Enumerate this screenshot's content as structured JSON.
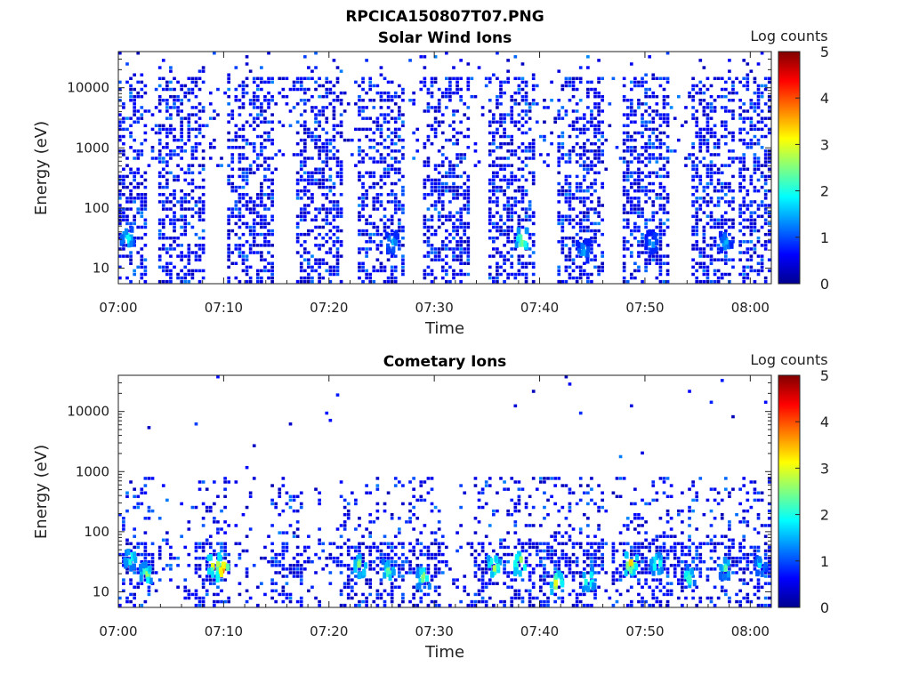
{
  "figure": {
    "title": "RPCICA150807T07.PNG"
  },
  "colorbar": {
    "label": "Log counts",
    "range": [
      0,
      5
    ],
    "ticks": [
      "0",
      "1",
      "2",
      "3",
      "4",
      "5"
    ]
  },
  "chart_data": [
    {
      "type": "heatmap",
      "id": "solar",
      "title": "Solar Wind Ions",
      "xlabel": "Time",
      "ylabel": "Energy (eV)",
      "x_ticks": [
        "07:00",
        "07:10",
        "07:20",
        "07:30",
        "07:40",
        "07:50",
        "08:00"
      ],
      "x_range_minutes": [
        0,
        62
      ],
      "y_scale": "log",
      "y_ticks": [
        "10",
        "100",
        "1000",
        "10000"
      ],
      "y_range": [
        5.5,
        40000
      ],
      "z_label": "Log counts",
      "z_range": [
        0,
        5
      ],
      "bursts_minutes": [
        0.7,
        6.0,
        12.5,
        19.0,
        25.0,
        31.2,
        37.5,
        44.0,
        50.0,
        56.5,
        61.0
      ],
      "hotspots": [
        {
          "t_min": 0.7,
          "energy_eV": 35,
          "log_counts": 2.2
        },
        {
          "t_min": 25.8,
          "energy_eV": 30,
          "log_counts": 1.8
        },
        {
          "t_min": 38.2,
          "energy_eV": 33,
          "log_counts": 3.0
        },
        {
          "t_min": 44.0,
          "energy_eV": 22,
          "log_counts": 1.7
        },
        {
          "t_min": 50.5,
          "energy_eV": 30,
          "log_counts": 1.6
        },
        {
          "t_min": 57.5,
          "energy_eV": 30,
          "log_counts": 1.7
        }
      ]
    },
    {
      "type": "heatmap",
      "id": "comet",
      "title": "Cometary Ions",
      "xlabel": "Time",
      "ylabel": "Energy (eV)",
      "x_ticks": [
        "07:00",
        "07:10",
        "07:20",
        "07:30",
        "07:40",
        "07:50",
        "08:00"
      ],
      "x_range_minutes": [
        0,
        62
      ],
      "y_scale": "log",
      "y_ticks": [
        "10",
        "100",
        "1000",
        "10000"
      ],
      "y_range": [
        5.5,
        40000
      ],
      "z_label": "Log counts",
      "z_range": [
        0,
        5
      ],
      "bursts_minutes": [
        2.0,
        9.0,
        16.0,
        22.5,
        25.5,
        29.0,
        35.5,
        38.0,
        41.5,
        44.5,
        48.5,
        51.0,
        54.0,
        57.5,
        60.5
      ],
      "hotspots": [
        {
          "t_min": 1.0,
          "energy_eV": 40,
          "log_counts": 2.5
        },
        {
          "t_min": 2.5,
          "energy_eV": 22,
          "log_counts": 2.8
        },
        {
          "t_min": 9.0,
          "energy_eV": 32,
          "log_counts": 3.8
        },
        {
          "t_min": 9.8,
          "energy_eV": 26,
          "log_counts": 4.2
        },
        {
          "t_min": 22.8,
          "energy_eV": 30,
          "log_counts": 3.0
        },
        {
          "t_min": 25.5,
          "energy_eV": 25,
          "log_counts": 2.6
        },
        {
          "t_min": 28.8,
          "energy_eV": 20,
          "log_counts": 2.8
        },
        {
          "t_min": 35.5,
          "energy_eV": 30,
          "log_counts": 3.1
        },
        {
          "t_min": 38.0,
          "energy_eV": 33,
          "log_counts": 3.5
        },
        {
          "t_min": 41.5,
          "energy_eV": 16,
          "log_counts": 3.4
        },
        {
          "t_min": 44.5,
          "energy_eV": 18,
          "log_counts": 2.8
        },
        {
          "t_min": 48.5,
          "energy_eV": 33,
          "log_counts": 3.6
        },
        {
          "t_min": 51.0,
          "energy_eV": 33,
          "log_counts": 2.7
        },
        {
          "t_min": 54.0,
          "energy_eV": 20,
          "log_counts": 2.5
        },
        {
          "t_min": 57.5,
          "energy_eV": 28,
          "log_counts": 2.4
        },
        {
          "t_min": 60.8,
          "energy_eV": 30,
          "log_counts": 2.0
        }
      ]
    }
  ]
}
